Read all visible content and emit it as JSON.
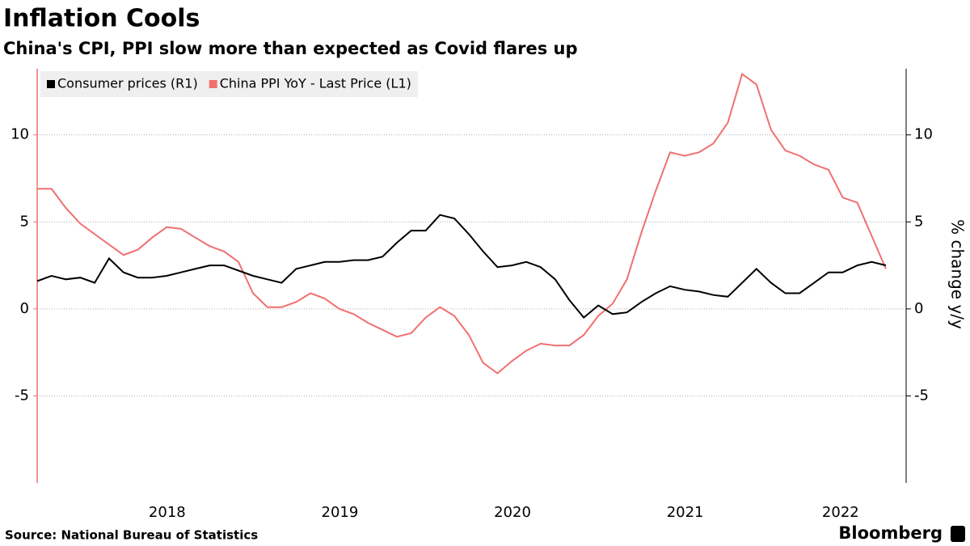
{
  "chart_data": {
    "type": "line",
    "title": "Inflation Cools",
    "subtitle": "China's CPI, PPI slow more than expected as Covid flares up",
    "y2_label": "% change y/y",
    "source": "Source: National Bureau of Statistics",
    "brand": "Bloomberg",
    "legend": "top-left",
    "grid": true,
    "x": [
      2017.667,
      2017.75,
      2017.833,
      2017.917,
      2018,
      2018.083,
      2018.167,
      2018.25,
      2018.333,
      2018.417,
      2018.5,
      2018.583,
      2018.667,
      2018.75,
      2018.833,
      2018.917,
      2019,
      2019.083,
      2019.167,
      2019.25,
      2019.333,
      2019.417,
      2019.5,
      2019.583,
      2019.667,
      2019.75,
      2019.833,
      2019.917,
      2020,
      2020.083,
      2020.167,
      2020.25,
      2020.333,
      2020.417,
      2020.5,
      2020.583,
      2020.667,
      2020.75,
      2020.833,
      2020.917,
      2021,
      2021.083,
      2021.167,
      2021.25,
      2021.333,
      2021.417,
      2021.5,
      2021.583,
      2021.667,
      2021.75,
      2021.833,
      2021.917,
      2022,
      2022.083,
      2022.167,
      2022.25,
      2022.333,
      2022.417,
      2022.5,
      2022.583
    ],
    "xlim": [
      2017.667,
      2022.7
    ],
    "xticks": [
      {
        "value": 2018.42,
        "label": "2018"
      },
      {
        "value": 2019.42,
        "label": "2019"
      },
      {
        "value": 2020.42,
        "label": "2020"
      },
      {
        "value": 2021.42,
        "label": "2021"
      },
      {
        "value": 2022.32,
        "label": "2022"
      }
    ],
    "ylim": [
      -10,
      13.8
    ],
    "yticks": [
      -5,
      0,
      5,
      10
    ],
    "y2lim": [
      -10,
      13.8
    ],
    "y2ticks": [
      -5,
      0,
      5,
      10
    ],
    "series": [
      {
        "name": "Consumer prices (R1)",
        "color": "#000000",
        "axis": "y2",
        "values": [
          1.6,
          1.9,
          1.7,
          1.8,
          1.5,
          2.9,
          2.1,
          1.8,
          1.8,
          1.9,
          2.1,
          2.3,
          2.5,
          2.5,
          2.2,
          1.9,
          1.7,
          1.5,
          2.3,
          2.5,
          2.7,
          2.7,
          2.8,
          2.8,
          3.0,
          3.8,
          4.5,
          4.5,
          5.4,
          5.2,
          4.3,
          3.3,
          2.4,
          2.5,
          2.7,
          2.4,
          1.7,
          0.5,
          -0.5,
          0.2,
          -0.3,
          -0.2,
          0.4,
          0.9,
          1.3,
          1.1,
          1.0,
          0.8,
          0.7,
          1.5,
          2.3,
          1.5,
          0.9,
          0.9,
          1.5,
          2.1,
          2.1,
          2.5,
          2.7,
          2.5
        ]
      },
      {
        "name": "China PPI YoY - Last Price (L1)",
        "color": "#f07070",
        "axis": "y",
        "values": [
          6.9,
          6.9,
          5.8,
          4.9,
          4.3,
          3.7,
          3.1,
          3.4,
          4.1,
          4.7,
          4.6,
          4.1,
          3.6,
          3.3,
          2.7,
          0.9,
          0.1,
          0.1,
          0.4,
          0.9,
          0.6,
          0.0,
          -0.3,
          -0.8,
          -1.2,
          -1.6,
          -1.4,
          -0.5,
          0.1,
          -0.4,
          -1.5,
          -3.1,
          -3.7,
          -3.0,
          -2.4,
          -2.0,
          -2.1,
          -2.1,
          -1.5,
          -0.4,
          0.3,
          1.7,
          4.4,
          6.8,
          9.0,
          8.8,
          9.0,
          9.5,
          10.7,
          13.5,
          12.9,
          10.3,
          9.1,
          8.8,
          8.3,
          8.0,
          6.4,
          6.1,
          4.2,
          2.3
        ]
      }
    ]
  }
}
